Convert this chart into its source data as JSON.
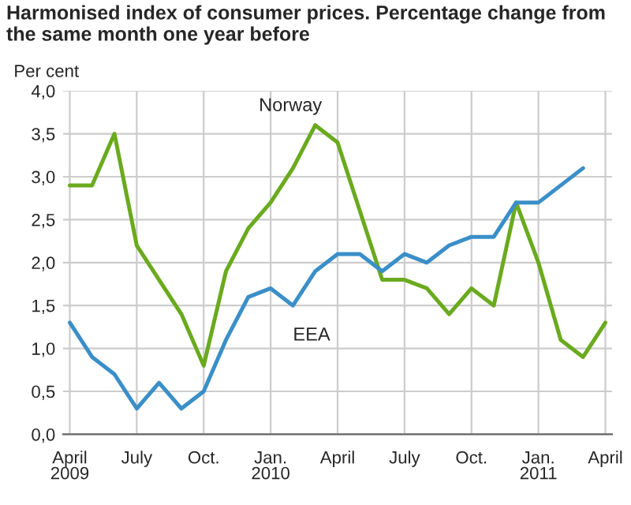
{
  "chart_data": {
    "type": "line",
    "title": "Harmonised index of consumer prices. Percentage change from the same month one year before",
    "ylabel": "Per cent",
    "categories": [
      "April\n2009",
      null,
      null,
      "July",
      null,
      null,
      "Oct.",
      null,
      null,
      "Jan.\n2010",
      null,
      null,
      "April",
      null,
      null,
      "July",
      null,
      null,
      "Oct.",
      null,
      null,
      "Jan.\n2011",
      null,
      null,
      "April"
    ],
    "series": [
      {
        "name": "Norway",
        "color": "#6aaa1e",
        "values": [
          2.9,
          2.9,
          3.5,
          2.2,
          1.8,
          1.4,
          0.8,
          1.9,
          2.4,
          2.7,
          3.1,
          3.6,
          3.4,
          2.6,
          1.8,
          1.8,
          1.7,
          1.4,
          1.7,
          1.5,
          2.7,
          2.0,
          1.1,
          0.9,
          1.3
        ]
      },
      {
        "name": "EEA",
        "color": "#3a8fc8",
        "values": [
          1.3,
          0.9,
          0.7,
          0.3,
          0.6,
          0.3,
          0.5,
          1.1,
          1.6,
          1.7,
          1.5,
          1.9,
          2.1,
          2.1,
          1.9,
          2.1,
          2.0,
          2.2,
          2.3,
          2.3,
          2.7,
          2.7,
          2.9,
          3.1,
          null
        ]
      }
    ],
    "ylim": [
      0,
      4
    ],
    "yticks": [
      {
        "value": 0,
        "label": "0,0"
      },
      {
        "value": 0.5,
        "label": "0,5"
      },
      {
        "value": 1,
        "label": "1,0"
      },
      {
        "value": 1.5,
        "label": "1,5"
      },
      {
        "value": 2,
        "label": "2,0"
      },
      {
        "value": 2.5,
        "label": "2,5"
      },
      {
        "value": 3,
        "label": "3,0"
      },
      {
        "value": 3.5,
        "label": "3,5"
      },
      {
        "value": 4,
        "label": "4,0"
      }
    ],
    "grid": true,
    "legend": false,
    "marker": "none",
    "line_style": "solid"
  }
}
